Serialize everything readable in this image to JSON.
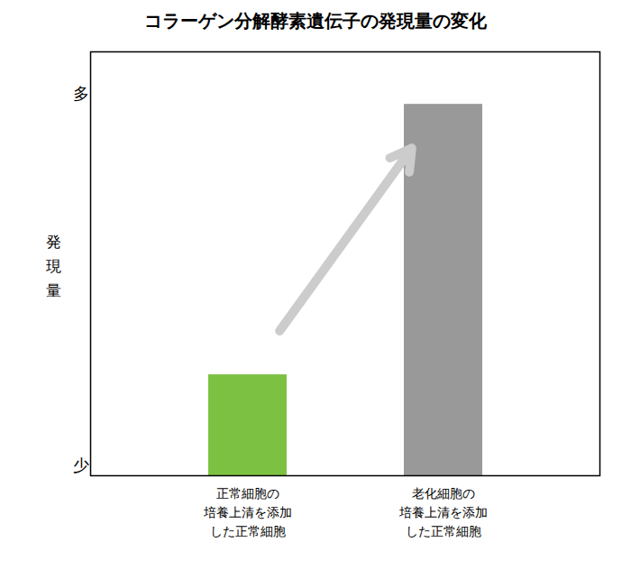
{
  "chart_data": {
    "type": "bar",
    "title": "コラーゲン分解酵素遺伝子の発現量の変化",
    "categories": [
      "正常細胞の\n培養上清を添加\nした正常細胞",
      "老化細胞の\n培養上清を添加\nした正常細胞"
    ],
    "values": [
      0.25,
      0.92
    ],
    "colors": [
      "#7dc142",
      "#999999"
    ],
    "ylabel": "発現量",
    "annotations": [
      "少",
      "多"
    ],
    "ylim": [
      0,
      1.05
    ],
    "grid": false,
    "tick_labels": "x"
  }
}
